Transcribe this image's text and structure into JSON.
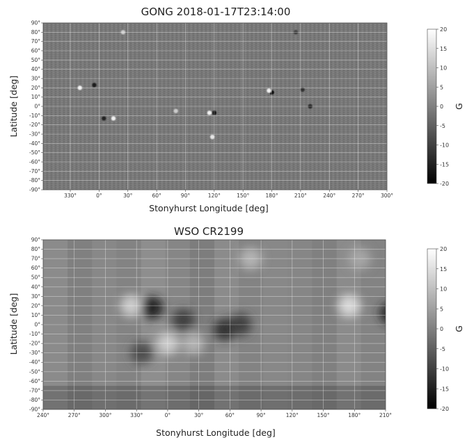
{
  "chart_data": [
    {
      "type": "heatmap",
      "title": "GONG  2018-01-17T23:14:00",
      "xlabel": "Stonyhurst Longitude [deg]",
      "ylabel": "Latitude [deg]",
      "x_tick_labels": [
        "330°",
        "0°",
        "30°",
        "60°",
        "90°",
        "120°",
        "150°",
        "180°",
        "210°",
        "240°",
        "270°",
        "300°"
      ],
      "y_tick_labels": [
        "90°",
        "80°",
        "70°",
        "60°",
        "50°",
        "40°",
        "30°",
        "20°",
        "10°",
        "0°",
        "-10°",
        "-20°",
        "-30°",
        "-40°",
        "-50°",
        "-60°",
        "-70°",
        "-80°",
        "-90°"
      ],
      "ylim": [
        -90,
        90
      ],
      "grid": true,
      "colorbar": {
        "label": "G",
        "range": [
          -20,
          20
        ],
        "ticks": [
          "20",
          "15",
          "10",
          "5",
          "0",
          "-5",
          "-10",
          "-15",
          "-20"
        ]
      },
      "colormap": "gray",
      "features": [
        {
          "lon": 340,
          "lat": 20,
          "value": 18
        },
        {
          "lon": 355,
          "lat": 23,
          "value": -16
        },
        {
          "lon": 5,
          "lat": -13,
          "value": -15
        },
        {
          "lon": 15,
          "lat": -13,
          "value": 18
        },
        {
          "lon": 80,
          "lat": -5,
          "value": 12
        },
        {
          "lon": 115,
          "lat": -7,
          "value": 18
        },
        {
          "lon": 120,
          "lat": -7,
          "value": -18
        },
        {
          "lon": 118,
          "lat": -33,
          "value": 16
        },
        {
          "lon": 180,
          "lat": 15,
          "value": -20
        },
        {
          "lon": 177,
          "lat": 17,
          "value": 18
        },
        {
          "lon": 212,
          "lat": 18,
          "value": -12
        },
        {
          "lon": 220,
          "lat": 0,
          "value": -14
        },
        {
          "lon": 25,
          "lat": 80,
          "value": 12
        },
        {
          "lon": 205,
          "lat": 80,
          "value": -10
        }
      ]
    },
    {
      "type": "heatmap",
      "title": "WSO  CR2199",
      "xlabel": "Stonyhurst Longitude [deg]",
      "ylabel": "Latitude [deg]",
      "x_tick_labels": [
        "240°",
        "270°",
        "300°",
        "330°",
        "0°",
        "30°",
        "60°",
        "90°",
        "120°",
        "150°",
        "180°",
        "210°"
      ],
      "y_tick_labels": [
        "90°",
        "80°",
        "70°",
        "60°",
        "50°",
        "40°",
        "30°",
        "20°",
        "10°",
        "0°",
        "-10°",
        "-20°",
        "-30°",
        "-40°",
        "-50°",
        "-60°",
        "-70°",
        "-80°",
        "-90°"
      ],
      "ylim": [
        -90,
        90
      ],
      "grid": true,
      "colorbar": {
        "label": "G",
        "range": [
          -20,
          20
        ],
        "ticks": [
          "20",
          "15",
          "10",
          "5",
          "0",
          "-5",
          "-10",
          "-15",
          "-20"
        ]
      },
      "colormap": "gray",
      "features": [
        {
          "lon": 325,
          "lat": 20,
          "value": 12
        },
        {
          "lon": 345,
          "lat": 18,
          "value": -15
        },
        {
          "lon": 15,
          "lat": 5,
          "value": -10
        },
        {
          "lon": 0,
          "lat": -20,
          "value": 12
        },
        {
          "lon": 25,
          "lat": -20,
          "value": 8
        },
        {
          "lon": 55,
          "lat": -5,
          "value": -12
        },
        {
          "lon": 70,
          "lat": 0,
          "value": -10
        },
        {
          "lon": 335,
          "lat": -30,
          "value": -8
        },
        {
          "lon": 80,
          "lat": 70,
          "value": 8
        },
        {
          "lon": 175,
          "lat": 20,
          "value": 14
        },
        {
          "lon": 215,
          "lat": 12,
          "value": -14
        },
        {
          "lon": 185,
          "lat": 70,
          "value": 6
        }
      ]
    }
  ]
}
